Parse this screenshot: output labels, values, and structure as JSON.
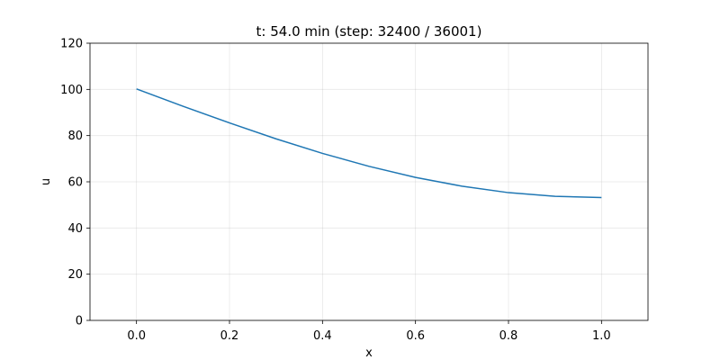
{
  "chart_data": {
    "type": "line",
    "title": "t: 54.0 min (step: 32400 / 36001)",
    "xlabel": "x",
    "ylabel": "u",
    "xlim": [
      -0.1,
      1.1
    ],
    "ylim": [
      0,
      120
    ],
    "xticks": [
      0.0,
      0.2,
      0.4,
      0.6,
      0.8,
      1.0
    ],
    "xtick_labels": [
      "0.0",
      "0.2",
      "0.4",
      "0.6",
      "0.8",
      "1.0"
    ],
    "yticks": [
      0,
      20,
      40,
      60,
      80,
      100,
      120
    ],
    "ytick_labels": [
      "0",
      "20",
      "40",
      "60",
      "80",
      "100",
      "120"
    ],
    "grid": true,
    "series": [
      {
        "color": "#1f77b4",
        "x": [
          0.0,
          0.1,
          0.2,
          0.3,
          0.4,
          0.5,
          0.6,
          0.7,
          0.8,
          0.9,
          1.0
        ],
        "y": [
          100.2,
          92.7,
          85.5,
          78.6,
          72.3,
          66.7,
          61.9,
          58.1,
          55.3,
          53.7,
          53.2
        ]
      }
    ]
  }
}
